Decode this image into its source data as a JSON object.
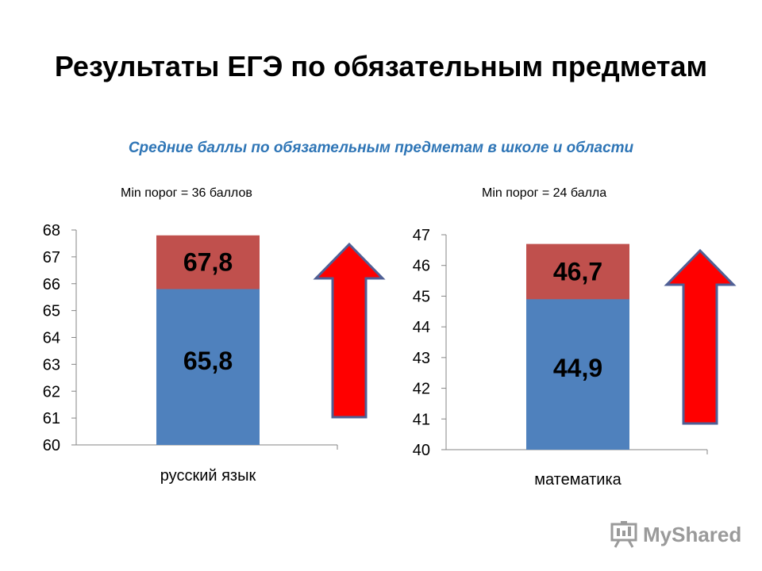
{
  "title": "Результаты ЕГЭ по обязательным предметам",
  "subtitle": "Средние баллы по обязательным предметам в школе и области",
  "watermark": "MyShared",
  "colors": {
    "school": "#4f81bd",
    "region": "#c0504d",
    "arrow_fill": "#ff0000",
    "arrow_stroke": "#4f5f95",
    "subtitle": "#2e75b6"
  },
  "chart_data": [
    {
      "type": "bar",
      "header": "Min порог = 36 баллов",
      "categories": [
        "русский язык"
      ],
      "series": [
        {
          "values": [
            65.8
          ],
          "label": "65,8"
        },
        {
          "values": [
            67.8
          ],
          "label": "67,8"
        }
      ],
      "ylim": [
        60,
        68
      ],
      "yticks": [
        60,
        61,
        62,
        63,
        64,
        65,
        66,
        67,
        68
      ],
      "grid": false,
      "annotation": "up-arrow"
    },
    {
      "type": "bar",
      "header": "Min порог = 24 балла",
      "categories": [
        "математика"
      ],
      "series": [
        {
          "values": [
            44.9
          ],
          "label": "44,9"
        },
        {
          "values": [
            46.7
          ],
          "label": "46,7"
        }
      ],
      "ylim": [
        40,
        47
      ],
      "yticks": [
        40,
        41,
        42,
        43,
        44,
        45,
        46,
        47
      ],
      "grid": false,
      "annotation": "up-arrow"
    }
  ]
}
